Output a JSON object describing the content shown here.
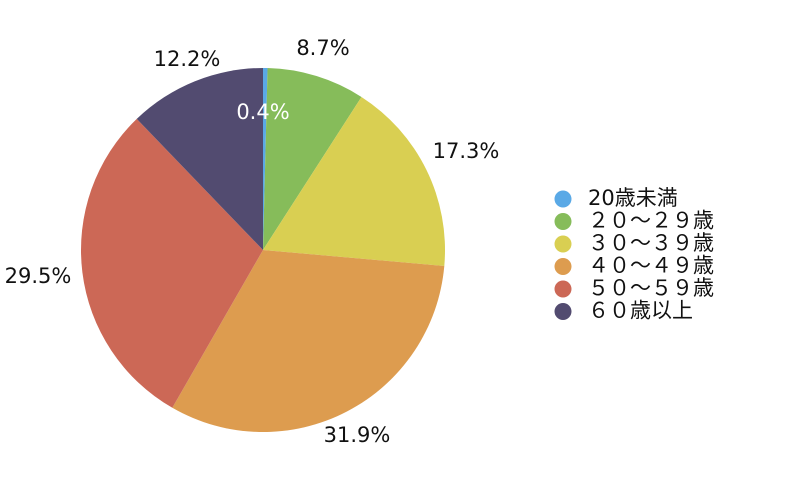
{
  "chart_data": {
    "type": "pie",
    "title": "",
    "legend_position": "right",
    "start_angle_deg": 0,
    "direction": "clockwise",
    "slices": [
      {
        "label": "20歳未満",
        "value": 0.4,
        "value_label": "0.4%",
        "color": "#5aa9e6"
      },
      {
        "label": "２０〜２９歳",
        "value": 8.7,
        "value_label": "8.7%",
        "color": "#86bc5a"
      },
      {
        "label": "３０〜３９歳",
        "value": 17.3,
        "value_label": "17.3%",
        "color": "#d9cf52"
      },
      {
        "label": "４０〜４９歳",
        "value": 31.9,
        "value_label": "31.9%",
        "color": "#dd9c4f"
      },
      {
        "label": "５０〜５９歳",
        "value": 29.5,
        "value_label": "29.5%",
        "color": "#cc6856"
      },
      {
        "label": "６０歳以上",
        "value": 12.2,
        "value_label": "12.2%",
        "color": "#524b70"
      }
    ]
  }
}
